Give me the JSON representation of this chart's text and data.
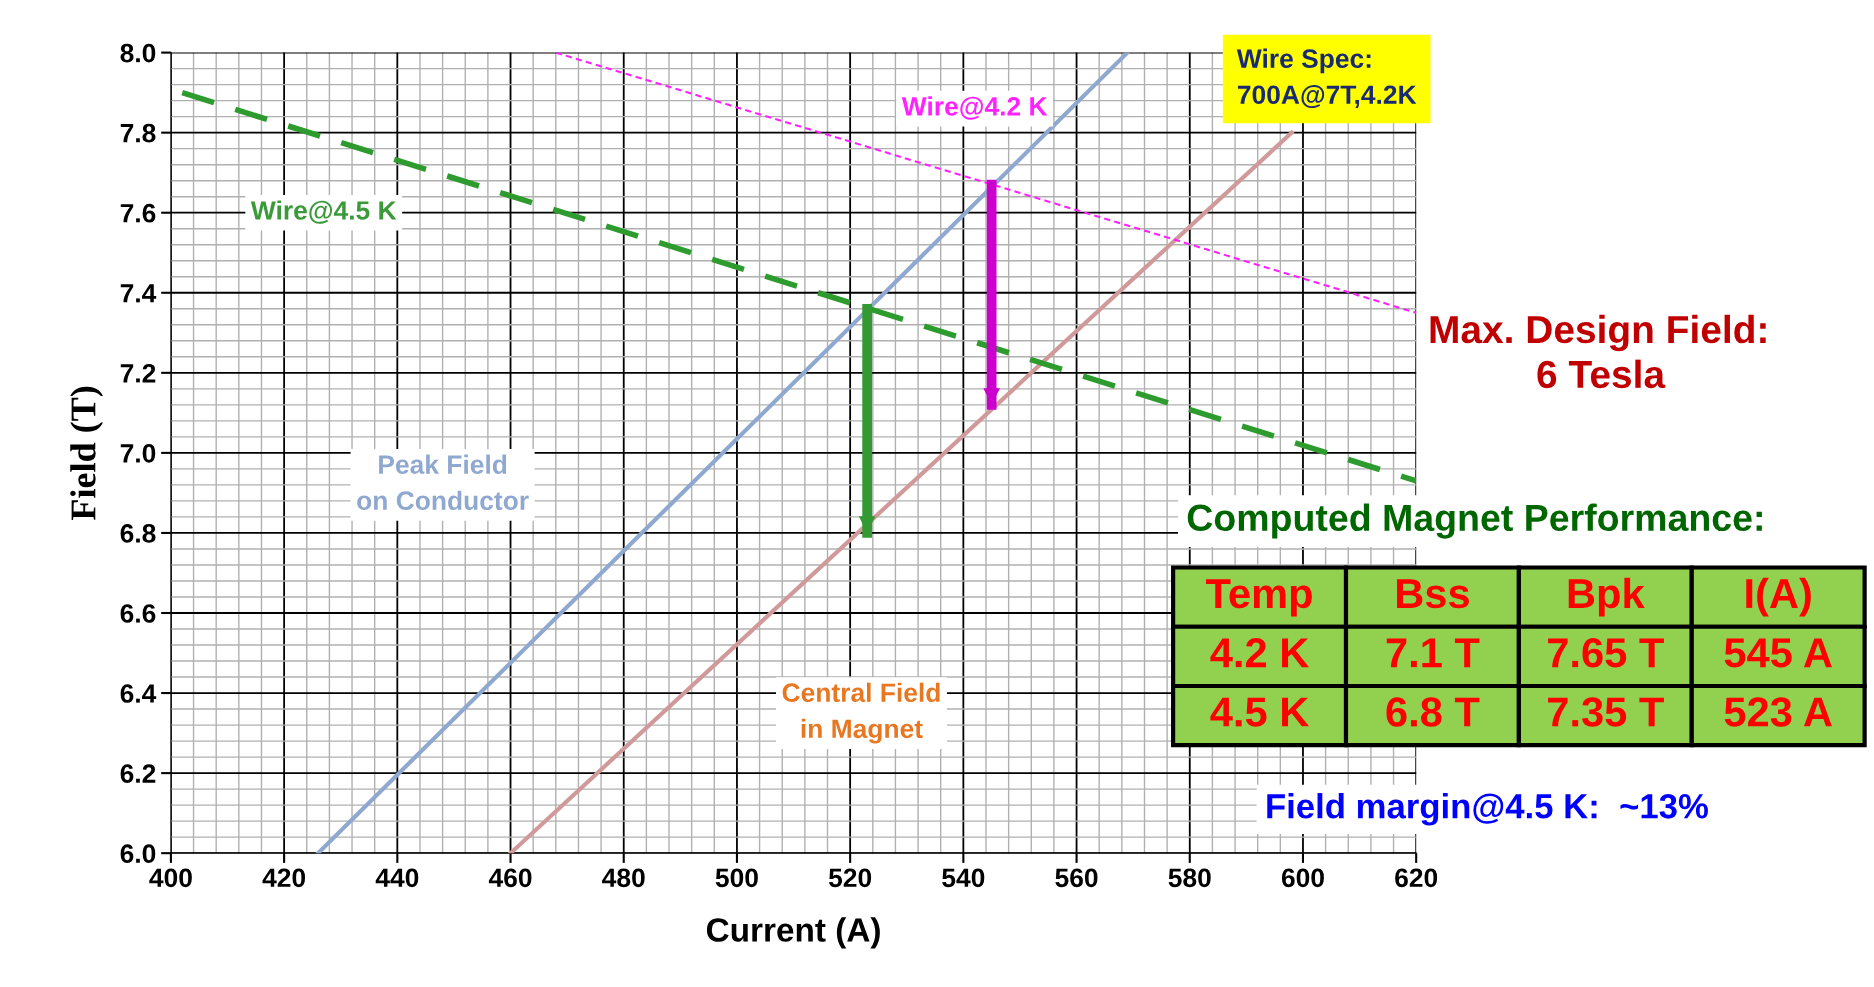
{
  "chart_data": {
    "type": "line",
    "xlabel": "Current (A)",
    "ylabel": "Field (T)",
    "xlim": [
      400,
      620
    ],
    "xticks": [
      400,
      420,
      440,
      460,
      480,
      500,
      520,
      540,
      560,
      580,
      600,
      620
    ],
    "ylim": [
      6.0,
      8.0
    ],
    "yticks": [
      {
        "value": 6.0,
        "label": "6.0"
      },
      {
        "value": 6.2,
        "label": "6.2"
      },
      {
        "value": 6.4,
        "label": "6.4"
      },
      {
        "value": 6.6,
        "label": "6.6"
      },
      {
        "value": 6.8,
        "label": "6.8"
      },
      {
        "value": 7.0,
        "label": "7.0"
      },
      {
        "value": 7.2,
        "label": "7.2"
      },
      {
        "value": 7.4,
        "label": "7.4"
      },
      {
        "value": 7.6,
        "label": "7.6"
      },
      {
        "value": 7.8,
        "label": "7.8"
      },
      {
        "value": 8.0,
        "label": "8.0"
      }
    ],
    "grid": true,
    "legend": false,
    "marker": "none",
    "series": [
      {
        "name": "Peak Field\non Conductor",
        "color": "#8fa8d0",
        "x": [
          426,
          569
        ],
        "values": [
          6.0,
          8.0
        ],
        "line_style": "solid"
      },
      {
        "name": "Central Field\nin Magnet",
        "color": "#d09a9a",
        "x": [
          460,
          598
        ],
        "values": [
          6.0,
          7.8
        ],
        "line_style": "solid"
      },
      {
        "name": "Wire@4.5 K",
        "color": "#2e9b2e",
        "x": [
          402,
          620
        ],
        "values": [
          7.9,
          6.93
        ],
        "line_style": "dashed"
      },
      {
        "name": "Wire@4.2 K",
        "color": "#ff22ff",
        "x": [
          468,
          620
        ],
        "values": [
          8.0,
          7.35
        ],
        "line_style": "dotted"
      },
      {
        "color": "#339933",
        "x": [
          523,
          523
        ],
        "values": [
          7.36,
          6.8
        ],
        "line_style": "solid"
      },
      {
        "color": "#cc00cc",
        "x": [
          545,
          545
        ],
        "values": [
          7.67,
          7.12
        ],
        "line_style": "solid"
      }
    ],
    "annotations": [
      "Wire Spec:\n700A@7T,4.2K",
      "Max. Design Field:\n          6 Tesla",
      "Computed Magnet Performance:",
      "Temp",
      "Bss",
      "Bpk",
      "I(A)",
      "4.2 K",
      "7.1 T",
      "7.65 T",
      "545 A",
      "4.5 K",
      "6.8 T",
      "7.35 T",
      "523 A",
      "Field margin@4.5 K:  ~13%"
    ]
  }
}
